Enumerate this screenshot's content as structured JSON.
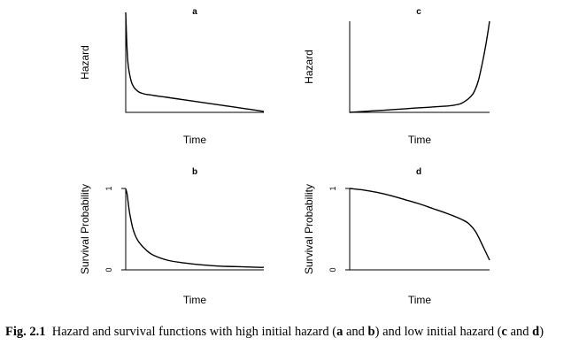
{
  "chart_data": [
    {
      "id": "a",
      "type": "line",
      "panel_label": "a",
      "xlabel": "Time",
      "ylabel": "Hazard",
      "yticks": [],
      "x": [
        0,
        0.01,
        0.02,
        0.04,
        0.06,
        0.08,
        0.1,
        0.12,
        0.15,
        0.2,
        0.3,
        0.4,
        0.5,
        0.6,
        0.7,
        0.8,
        0.9,
        1.0
      ],
      "y": [
        1.0,
        0.62,
        0.45,
        0.31,
        0.25,
        0.22,
        0.2,
        0.19,
        0.18,
        0.17,
        0.15,
        0.13,
        0.11,
        0.09,
        0.07,
        0.05,
        0.03,
        0.01
      ],
      "xlim": [
        0,
        1
      ],
      "ylim": [
        0,
        1
      ]
    },
    {
      "id": "c",
      "type": "line",
      "panel_label": "c",
      "xlabel": "Time",
      "ylabel": "Hazard",
      "yticks": [],
      "x": [
        0,
        0.1,
        0.2,
        0.3,
        0.4,
        0.5,
        0.6,
        0.65,
        0.7,
        0.75,
        0.8,
        0.85,
        0.88,
        0.9,
        0.92,
        0.94,
        0.96,
        0.98,
        1.0
      ],
      "y": [
        0.0,
        0.01,
        0.02,
        0.03,
        0.04,
        0.05,
        0.06,
        0.065,
        0.07,
        0.08,
        0.1,
        0.15,
        0.2,
        0.26,
        0.35,
        0.48,
        0.63,
        0.8,
        1.0
      ],
      "xlim": [
        0,
        1
      ],
      "ylim": [
        0,
        1
      ]
    },
    {
      "id": "b",
      "type": "line",
      "panel_label": "b",
      "xlabel": "Time",
      "ylabel": "Survival Probability",
      "yticks": [
        "0",
        "1"
      ],
      "x": [
        0,
        0.01,
        0.02,
        0.03,
        0.05,
        0.07,
        0.1,
        0.15,
        0.2,
        0.3,
        0.4,
        0.5,
        0.6,
        0.7,
        0.8,
        0.9,
        1.0
      ],
      "y": [
        1.0,
        0.93,
        0.8,
        0.68,
        0.52,
        0.42,
        0.33,
        0.24,
        0.18,
        0.12,
        0.09,
        0.07,
        0.055,
        0.045,
        0.04,
        0.035,
        0.03
      ],
      "xlim": [
        0,
        1
      ],
      "ylim": [
        0,
        1
      ]
    },
    {
      "id": "d",
      "type": "line",
      "panel_label": "d",
      "xlabel": "Time",
      "ylabel": "Survival Probability",
      "yticks": [
        "0",
        "1"
      ],
      "x": [
        0,
        0.1,
        0.2,
        0.3,
        0.4,
        0.5,
        0.6,
        0.7,
        0.8,
        0.85,
        0.9,
        0.95,
        1.0
      ],
      "y": [
        1.0,
        0.98,
        0.95,
        0.91,
        0.86,
        0.81,
        0.75,
        0.69,
        0.62,
        0.57,
        0.47,
        0.3,
        0.12
      ],
      "xlim": [
        0,
        1
      ],
      "ylim": [
        0,
        1
      ]
    }
  ],
  "caption": {
    "fig_label": "Fig. 2.1",
    "text_1": "Hazard and survival functions with high initial hazard (",
    "a": "a",
    "and_1": " and ",
    "b": "b",
    "text_2": ") and low initial hazard (",
    "c": "c",
    "and_2": " and ",
    "d": "d",
    "text_3": ")"
  }
}
